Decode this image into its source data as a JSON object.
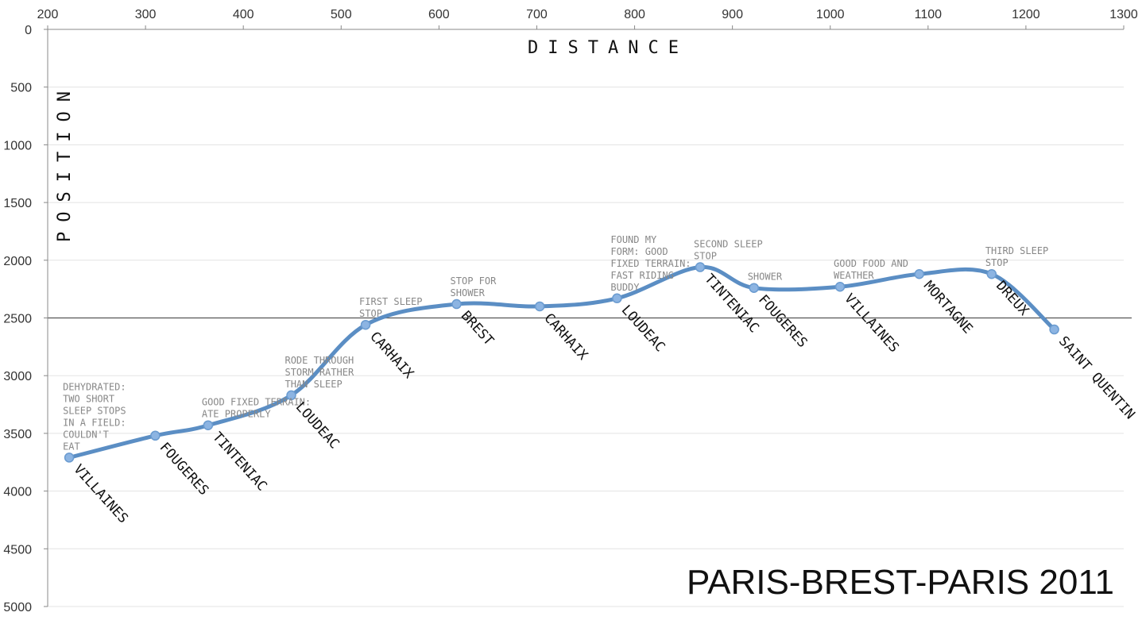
{
  "chart_data": {
    "type": "line",
    "title": "PARIS-BREST-PARIS 2011",
    "xlabel": "DISTANCE",
    "ylabel": "POSITION",
    "xlim": [
      200,
      1300
    ],
    "ylim": [
      0,
      5000
    ],
    "y_inverted": true,
    "x_axis_position": "top",
    "x_ticks": [
      "200",
      "300",
      "400",
      "500",
      "600",
      "700",
      "800",
      "900",
      "1000",
      "1100",
      "1200",
      "1300"
    ],
    "y_ticks": [
      "0",
      "500",
      "1000",
      "1500",
      "2000",
      "2500",
      "3000",
      "3500",
      "4000",
      "4500",
      "5000"
    ],
    "reference_line_y": 2500,
    "grid": true,
    "line_color": "#5b8ec4",
    "marker_color": "#8cb4e2",
    "points": [
      {
        "x": 222,
        "y": 3710,
        "label": "VILLAINES",
        "note": [
          "DEHYDRATED:",
          "TWO SHORT",
          "SLEEP STOPS",
          "IN A FIELD:",
          "COULDN'T",
          "EAT"
        ]
      },
      {
        "x": 310,
        "y": 3520,
        "label": "FOUGERES",
        "note": []
      },
      {
        "x": 364,
        "y": 3430,
        "label": "TINTENIAC",
        "note": [
          "GOOD FIXED TERRAIN:",
          "ATE PROPERLY"
        ]
      },
      {
        "x": 449,
        "y": 3170,
        "label": "LOUDEAC",
        "note": [
          "RODE THROUGH",
          "STORM RATHER",
          "THAN SLEEP"
        ]
      },
      {
        "x": 525,
        "y": 2560,
        "label": "CARHAIX",
        "note": [
          "FIRST SLEEP",
          "STOP"
        ]
      },
      {
        "x": 618,
        "y": 2380,
        "label": "BREST",
        "note": [
          "STOP FOR",
          "SHOWER"
        ]
      },
      {
        "x": 703,
        "y": 2400,
        "label": "CARHAIX",
        "note": []
      },
      {
        "x": 782,
        "y": 2330,
        "label": "LOUDEAC",
        "note": [
          "FOUND MY",
          "FORM: GOOD",
          "FIXED TERRAIN:",
          "FAST RIDING",
          "BUDDY"
        ]
      },
      {
        "x": 867,
        "y": 2060,
        "label": "TINTENIAC",
        "note": [
          "SECOND SLEEP",
          "STOP"
        ]
      },
      {
        "x": 922,
        "y": 2240,
        "label": "FOUGERES",
        "note": [
          "SHOWER"
        ]
      },
      {
        "x": 1010,
        "y": 2230,
        "label": "VILLAINES",
        "note": [
          "GOOD FOOD AND",
          "WEATHER"
        ]
      },
      {
        "x": 1091,
        "y": 2120,
        "label": "MORTAGNE",
        "note": []
      },
      {
        "x": 1165,
        "y": 2120,
        "label": "DREUX",
        "note": [
          "THIRD SLEEP",
          "STOP"
        ]
      },
      {
        "x": 1229,
        "y": 2600,
        "label": "SAINT QUENTIN",
        "note": []
      }
    ]
  }
}
